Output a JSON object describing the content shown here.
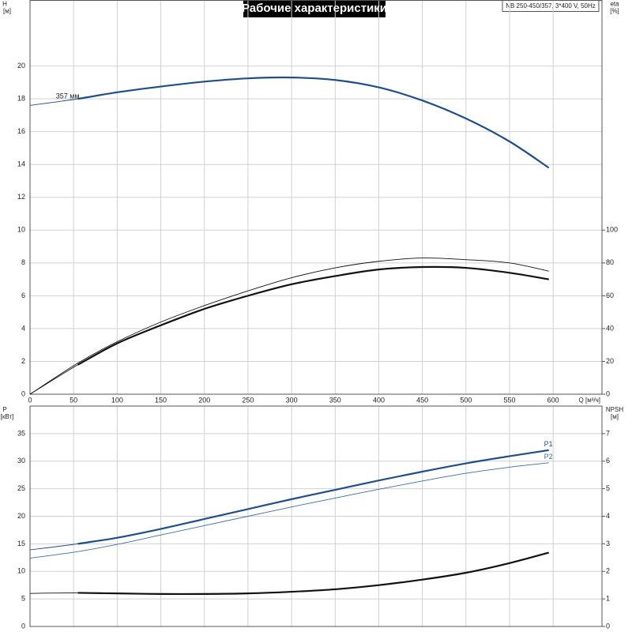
{
  "header": {
    "title": "Рабочие характеристики",
    "model": "NB 250-450/357, 3*400 V, 50Hz"
  },
  "chart_data": [
    {
      "type": "line",
      "ylabel": [
        "H",
        "[м]"
      ],
      "y2label": [
        "eta",
        "[%]"
      ],
      "xlabel": "Q [м³/ч]",
      "x": [
        0,
        55,
        100,
        150,
        200,
        250,
        300,
        350,
        400,
        450,
        500,
        550,
        595
      ],
      "xlim": [
        0,
        656
      ],
      "xticks": [
        0,
        50,
        100,
        150,
        200,
        250,
        300,
        350,
        400,
        450,
        500,
        550,
        600
      ],
      "ylim": [
        0,
        24
      ],
      "yticks": [
        0,
        2,
        4,
        6,
        8,
        10,
        12,
        14,
        16,
        18,
        20
      ],
      "y2lim": [
        0,
        240
      ],
      "y2ticks": [
        0,
        20,
        40,
        60,
        80,
        100
      ],
      "grid": true,
      "series": [
        {
          "name": "357 мм",
          "color": "#1f4e8c",
          "thick_from": 55,
          "label_at": "start",
          "values": [
            17.6,
            18.0,
            18.4,
            18.75,
            19.05,
            19.25,
            19.3,
            19.15,
            18.7,
            17.9,
            16.8,
            15.4,
            13.8
          ]
        },
        {
          "color": "#111111",
          "axis": "y2",
          "thick_from": 1000,
          "values": [
            0,
            19,
            32,
            44,
            54,
            63,
            71,
            77,
            81,
            83,
            82,
            80,
            75
          ]
        },
        {
          "color": "#111111",
          "axis": "y2",
          "thick_from": 55,
          "values": [
            0,
            18,
            31,
            42,
            52,
            60,
            67,
            72,
            76,
            77.5,
            77,
            74,
            70
          ]
        }
      ]
    },
    {
      "type": "line",
      "ylabel": [
        "P",
        "[кВт]"
      ],
      "y2label": [
        "NPSH",
        "[м]"
      ],
      "x": [
        0,
        55,
        100,
        150,
        200,
        250,
        300,
        350,
        400,
        450,
        500,
        550,
        595
      ],
      "xlim": [
        0,
        656
      ],
      "xticks": [
        0,
        50,
        100,
        150,
        200,
        250,
        300,
        350,
        400,
        450,
        500,
        550,
        600
      ],
      "ylim": [
        0,
        40
      ],
      "yticks": [
        0,
        5,
        10,
        15,
        20,
        25,
        30,
        35
      ],
      "y2lim": [
        0,
        8
      ],
      "y2ticks": [
        0,
        1,
        2,
        3,
        4,
        5,
        6,
        7
      ],
      "grid": true,
      "series": [
        {
          "name": "P1",
          "color": "#1f4e8c",
          "thick_from": 55,
          "label_at": "end",
          "values": [
            13.9,
            15.0,
            16.1,
            17.7,
            19.5,
            21.3,
            23.1,
            24.8,
            26.5,
            28.1,
            29.6,
            30.9,
            32.0
          ]
        },
        {
          "name": "P2",
          "color": "#3a6ea5",
          "thick_from": 1000,
          "label_at": "end",
          "values": [
            12.4,
            13.6,
            14.9,
            16.6,
            18.3,
            20.0,
            21.7,
            23.3,
            24.9,
            26.4,
            27.8,
            28.9,
            29.7
          ]
        },
        {
          "color": "#111111",
          "axis": "y2",
          "thick_from": 55,
          "values": [
            1.2,
            1.22,
            1.2,
            1.18,
            1.18,
            1.2,
            1.26,
            1.35,
            1.5,
            1.7,
            1.95,
            2.3,
            2.68
          ]
        }
      ]
    }
  ]
}
